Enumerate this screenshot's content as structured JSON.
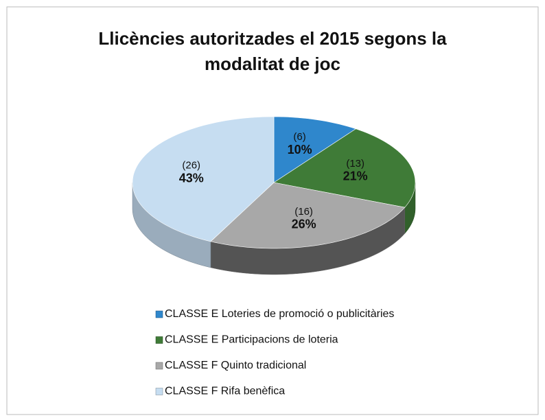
{
  "chart_data": {
    "type": "pie3d",
    "title": "Llicències autoritzades el 2015 segons la modalitat de joc",
    "categories": [
      "CLASSE E Loteries de promoció o publicitàries",
      "CLASSE E Participacions de loteria",
      "CLASSE F Quinto tradicional",
      "CLASSE F Rifa benèfica"
    ],
    "values": [
      6,
      13,
      16,
      26
    ],
    "value_labels": [
      "(6)",
      "(13)",
      "(16)",
      "(26)"
    ],
    "percentages": [
      10,
      21,
      26,
      43
    ],
    "percentage_labels": [
      "10%",
      "21%",
      "26%",
      "43%"
    ],
    "colors": [
      "#2f87cc",
      "#3f7b37",
      "#a8a8a8",
      "#c6ddf1"
    ],
    "legend": "bottom"
  }
}
